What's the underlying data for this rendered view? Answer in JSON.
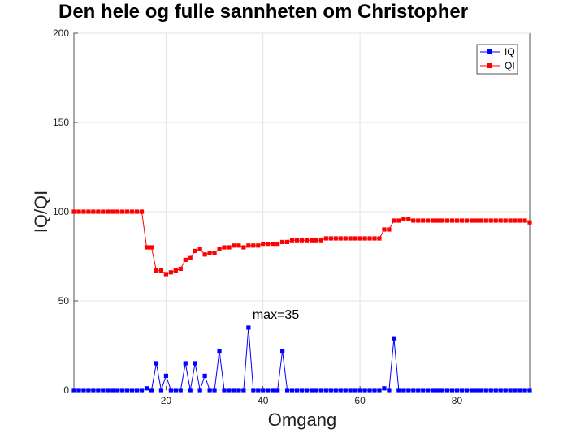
{
  "chart_data": {
    "type": "line",
    "title": "Den hele og fulle sannheten om Christopher",
    "xlabel": "Omgang",
    "ylabel": "IQ/QI",
    "xlim": [
      1,
      95
    ],
    "ylim": [
      0,
      200
    ],
    "xticks": [
      20,
      40,
      60,
      80
    ],
    "yticks": [
      0,
      50,
      100,
      150,
      200
    ],
    "grid": true,
    "legend": "top-right",
    "annotation": {
      "text": "max=35",
      "x": 37,
      "y": 35
    },
    "x": [
      1,
      2,
      3,
      4,
      5,
      6,
      7,
      8,
      9,
      10,
      11,
      12,
      13,
      14,
      15,
      16,
      17,
      18,
      19,
      20,
      21,
      22,
      23,
      24,
      25,
      26,
      27,
      28,
      29,
      30,
      31,
      32,
      33,
      34,
      35,
      36,
      37,
      38,
      39,
      40,
      41,
      42,
      43,
      44,
      45,
      46,
      47,
      48,
      49,
      50,
      51,
      52,
      53,
      54,
      55,
      56,
      57,
      58,
      59,
      60,
      61,
      62,
      63,
      64,
      65,
      66,
      67,
      68,
      69,
      70,
      71,
      72,
      73,
      74,
      75,
      76,
      77,
      78,
      79,
      80,
      81,
      82,
      83,
      84,
      85,
      86,
      87,
      88,
      89,
      90,
      91,
      92,
      93,
      94,
      95
    ],
    "series": [
      {
        "name": "IQ",
        "color": "#0000ff",
        "values": [
          0,
          0,
          0,
          0,
          0,
          0,
          0,
          0,
          0,
          0,
          0,
          0,
          0,
          0,
          0,
          1,
          0,
          15,
          0,
          8,
          0,
          0,
          0,
          15,
          0,
          15,
          0,
          8,
          0,
          0,
          22,
          0,
          0,
          0,
          0,
          0,
          35,
          0,
          0,
          0,
          0,
          0,
          0,
          22,
          0,
          0,
          0,
          0,
          0,
          0,
          0,
          0,
          0,
          0,
          0,
          0,
          0,
          0,
          0,
          0,
          0,
          0,
          0,
          0,
          1,
          0,
          29,
          0,
          0,
          0,
          0,
          0,
          0,
          0,
          0,
          0,
          0,
          0,
          0,
          0,
          0,
          0,
          0,
          0,
          0,
          0,
          0,
          0,
          0,
          0,
          0,
          0,
          0,
          0,
          0
        ]
      },
      {
        "name": "QI",
        "color": "#ff0000",
        "values": [
          100,
          100,
          100,
          100,
          100,
          100,
          100,
          100,
          100,
          100,
          100,
          100,
          100,
          100,
          100,
          80,
          80,
          67,
          67,
          65,
          66,
          67,
          68,
          73,
          74,
          78,
          79,
          76,
          77,
          77,
          79,
          80,
          80,
          81,
          81,
          80,
          81,
          81,
          81,
          82,
          82,
          82,
          82,
          83,
          83,
          84,
          84,
          84,
          84,
          84,
          84,
          84,
          85,
          85,
          85,
          85,
          85,
          85,
          85,
          85,
          85,
          85,
          85,
          85,
          90,
          90,
          95,
          95,
          96,
          96,
          95,
          95,
          95,
          95,
          95,
          95,
          95,
          95,
          95,
          95,
          95,
          95,
          95,
          95,
          95,
          95,
          95,
          95,
          95,
          95,
          95,
          95,
          95,
          95,
          94
        ]
      }
    ]
  }
}
